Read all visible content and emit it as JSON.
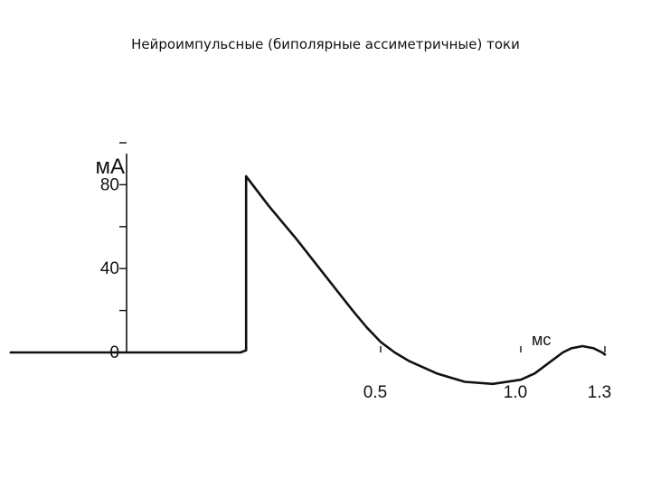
{
  "page": {
    "title": "Нейроимпульсные (биполярные ассиметричные) токи"
  },
  "chart_data": {
    "type": "line",
    "title": "Нейроимпульсные (биполярные ассиметричные) токи",
    "xlabel": "мс",
    "ylabel": "мА",
    "xlim": [
      -0.82,
      1.33
    ],
    "ylim": [
      -16,
      100
    ],
    "x_ticks": [
      0.5,
      1.0,
      1.3
    ],
    "x_tick_labels": [
      "0.5",
      "1.0",
      "1.3"
    ],
    "y_ticks": [
      0,
      20,
      40,
      60,
      80,
      100
    ],
    "y_tick_labels": [
      {
        "value": 0,
        "label": "0"
      },
      {
        "value": 40,
        "label": "40"
      },
      {
        "value": 80,
        "label": "80"
      }
    ],
    "grid": false,
    "legend": "none",
    "color": "#111111",
    "series": [
      {
        "x": [
          -0.82,
          0.0,
          0.02,
          0.02,
          0.1,
          0.2,
          0.3,
          0.4,
          0.45,
          0.5,
          0.55,
          0.6,
          0.7,
          0.8,
          0.9,
          1.0,
          1.05,
          1.1,
          1.15,
          1.18,
          1.22,
          1.26,
          1.29,
          1.3
        ],
        "y": [
          0,
          0,
          1,
          84,
          70,
          54,
          37,
          20,
          12,
          5,
          0,
          -4,
          -10,
          -14,
          -15,
          -13,
          -10,
          -5,
          0,
          2,
          3,
          2,
          0,
          -1
        ]
      }
    ]
  }
}
